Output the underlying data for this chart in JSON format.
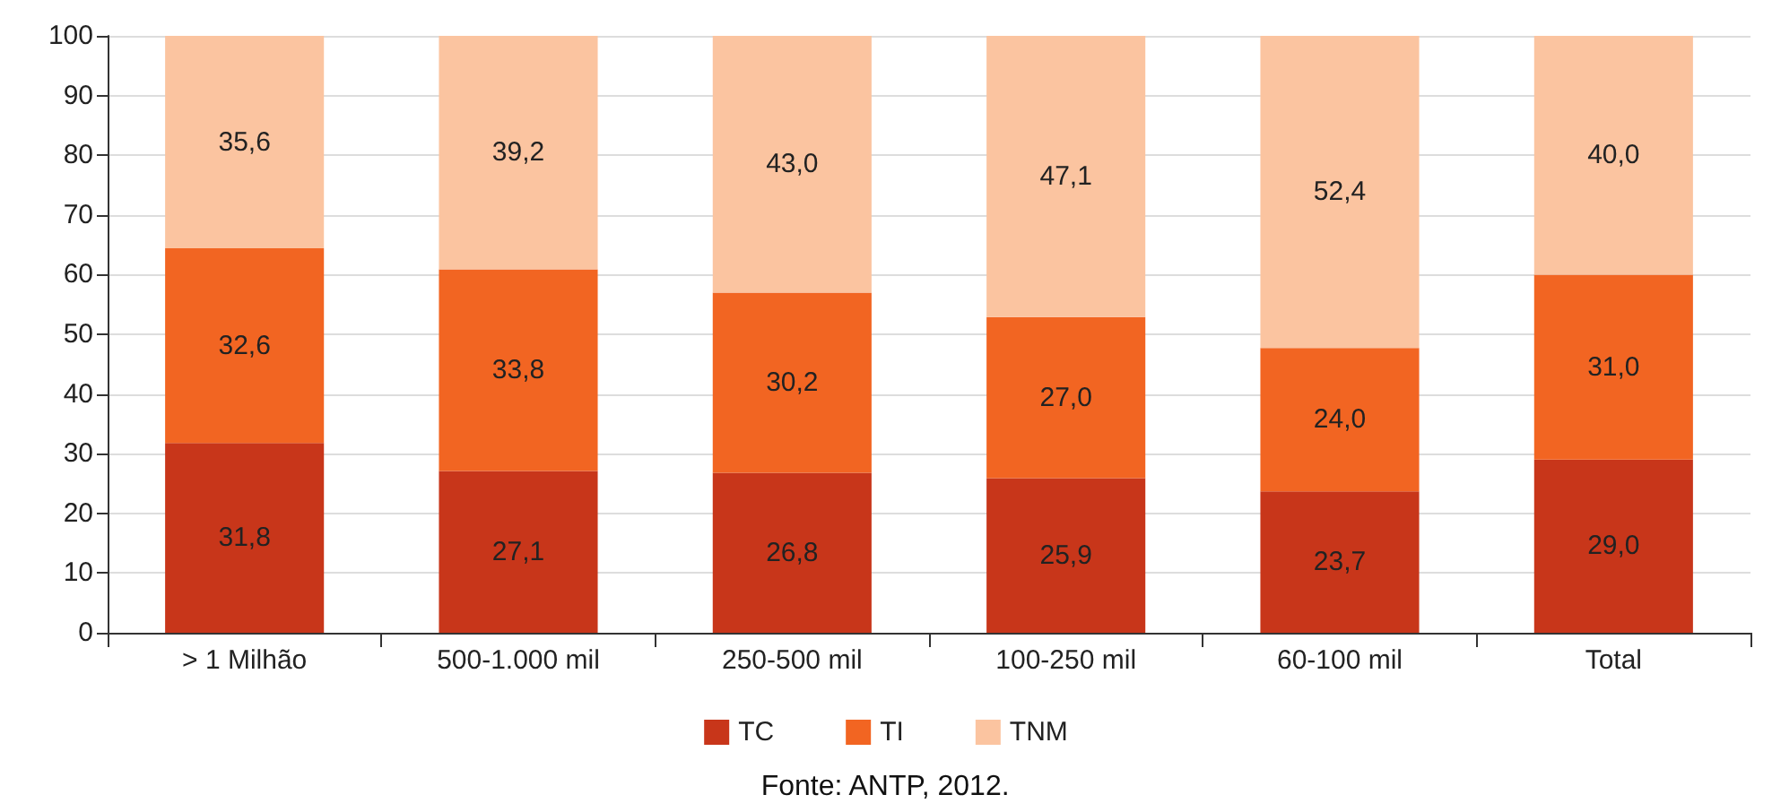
{
  "chart_data": {
    "type": "bar",
    "stacked": true,
    "categories": [
      "> 1 Milhão",
      "500-1.000 mil",
      "250-500 mil",
      "100-250 mil",
      "60-100 mil",
      "Total"
    ],
    "series": [
      {
        "name": "TC",
        "color": "#c8361a",
        "values": [
          31.8,
          27.1,
          26.8,
          25.9,
          23.7,
          29.0
        ],
        "value_labels": [
          "31,8",
          "27,1",
          "26,8",
          "25,9",
          "23,7",
          "29,0"
        ]
      },
      {
        "name": "TI",
        "color": "#f26522",
        "values": [
          32.6,
          33.8,
          30.2,
          27.0,
          24.0,
          31.0
        ],
        "value_labels": [
          "32,6",
          "33,8",
          "30,2",
          "27,0",
          "24,0",
          "31,0"
        ]
      },
      {
        "name": "TNM",
        "color": "#fbc4a0",
        "values": [
          35.6,
          39.2,
          43.0,
          47.1,
          52.4,
          40.0
        ],
        "value_labels": [
          "35,6",
          "39,2",
          "43,0",
          "47,1",
          "52,4",
          "40,0"
        ]
      }
    ],
    "ylim": [
      0,
      100
    ],
    "yticks": [
      0,
      10,
      20,
      30,
      40,
      50,
      60,
      70,
      80,
      90,
      100
    ],
    "grid": "y",
    "legend": "bottom",
    "annotations": [
      "Fonte: ANTP, 2012."
    ]
  }
}
